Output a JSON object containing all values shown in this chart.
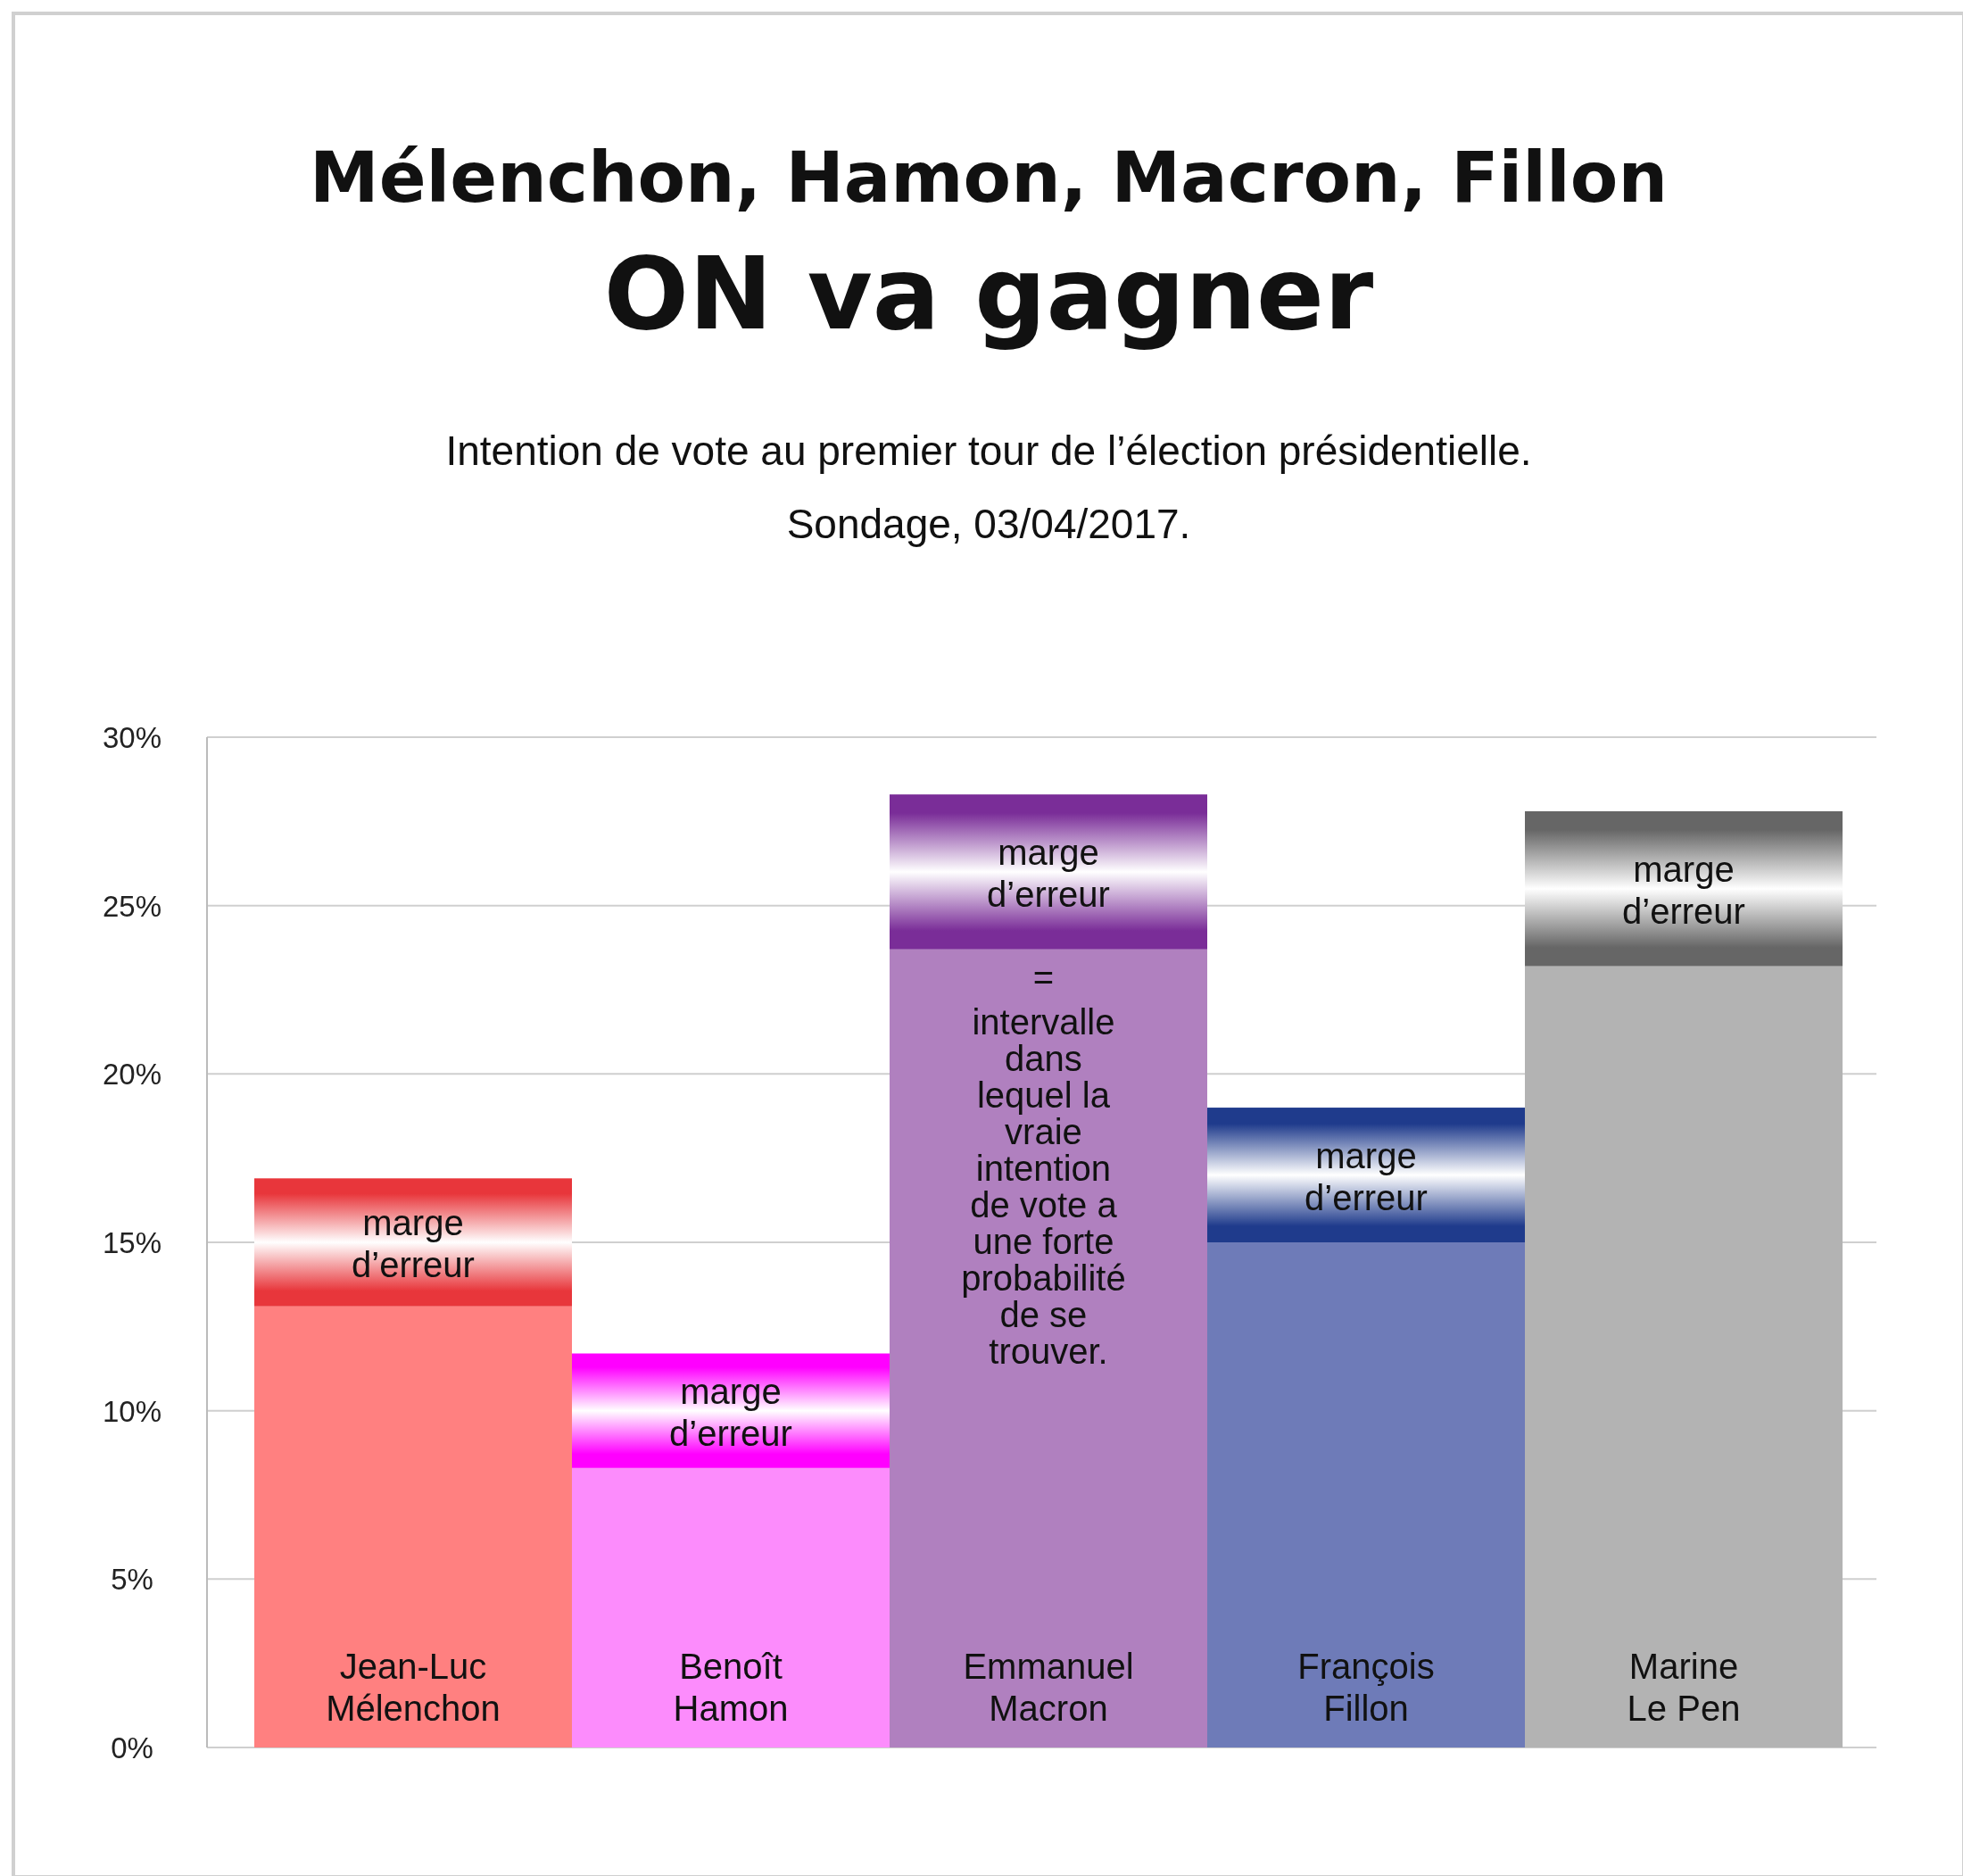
{
  "chart_data": {
    "type": "bar",
    "title": "Mélenchon, Hamon, Macron, Fillon",
    "subtitle": "ON va gagner",
    "annotations": [
      "Intention de vote au premier tour de l’élection présidentielle.",
      "Sondage, 03/04/2017.",
      "= intervalle dans lequel la vraie intention de vote a une forte probabilité de se trouver."
    ],
    "categories": [
      "Jean-Luc Mélenchon",
      "Benoît Hamon",
      "Emmanuel Macron",
      "François Fillon",
      "Marine Le Pen"
    ],
    "stacked": true,
    "series": [
      {
        "colors": [
          "#ff8080",
          "#fc8cfc",
          "#b080bf",
          "#6e7bb8",
          "#b3b3b3"
        ],
        "values": [
          13.1,
          8.3,
          23.7,
          15,
          23.2
        ]
      },
      {
        "name": "marge d’erreur",
        "colors": [
          "#e8363b",
          "#ff00ff",
          "#7a2d98",
          "#1f3b8c",
          "#666666"
        ],
        "values": [
          3.8,
          3.4,
          4.6,
          4,
          4.6
        ]
      }
    ],
    "ylim": [
      0,
      30
    ],
    "yticks": [
      {
        "value": 0,
        "label": "0%"
      },
      {
        "value": 5,
        "label": "5%"
      },
      {
        "value": 10,
        "label": "10%"
      },
      {
        "value": 15,
        "label": "15%"
      },
      {
        "value": 20,
        "label": "20%"
      },
      {
        "value": 25,
        "label": "25%"
      },
      {
        "value": 30,
        "label": "30%"
      }
    ],
    "grid": "y"
  }
}
